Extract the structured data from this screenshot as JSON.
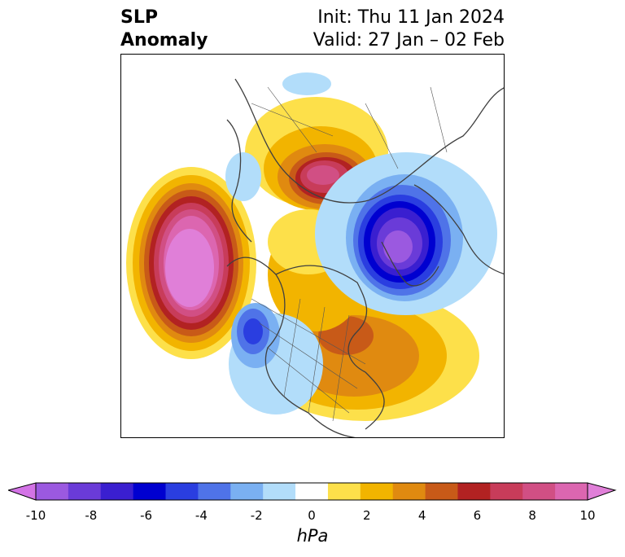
{
  "title": {
    "left_line1": "SLP",
    "left_line2": "Anomaly",
    "right_line1": "Init: Thu 11 Jan 2024",
    "right_line2": "Valid: 27 Jan – 02 Feb"
  },
  "colorbar": {
    "unit": "hPa",
    "ticks": [
      "-10",
      "-8",
      "-6",
      "-4",
      "-2",
      "0",
      "2",
      "4",
      "6",
      "8",
      "10"
    ],
    "colors": [
      "#d373e6",
      "#9b59e0",
      "#6a3bd8",
      "#3a1fd0",
      "#0000d0",
      "#2a3ee0",
      "#4f73e8",
      "#7ab0f2",
      "#b2ddfa",
      "#ffffff",
      "#fde04a",
      "#f2b400",
      "#e08a10",
      "#c85a18",
      "#b22222",
      "#c83c5a",
      "#d14f84",
      "#dc66b0",
      "#e07fd8"
    ],
    "extend": "both"
  },
  "map_features": {
    "projection": "polar stereographic, North Pole",
    "boundaries": [
      "coastlines",
      "country borders",
      "state/province borders"
    ],
    "anomaly_centers": [
      {
        "name": "north-pacific-high",
        "sign": "positive",
        "peak": "10"
      },
      {
        "name": "siberia-high",
        "sign": "positive",
        "peak": "6"
      },
      {
        "name": "eastern-canada-high",
        "sign": "positive",
        "peak": "6"
      },
      {
        "name": "north-atlantic-low",
        "sign": "negative",
        "peak": "-10"
      },
      {
        "name": "western-us-low",
        "sign": "negative",
        "peak": "-6"
      }
    ]
  }
}
